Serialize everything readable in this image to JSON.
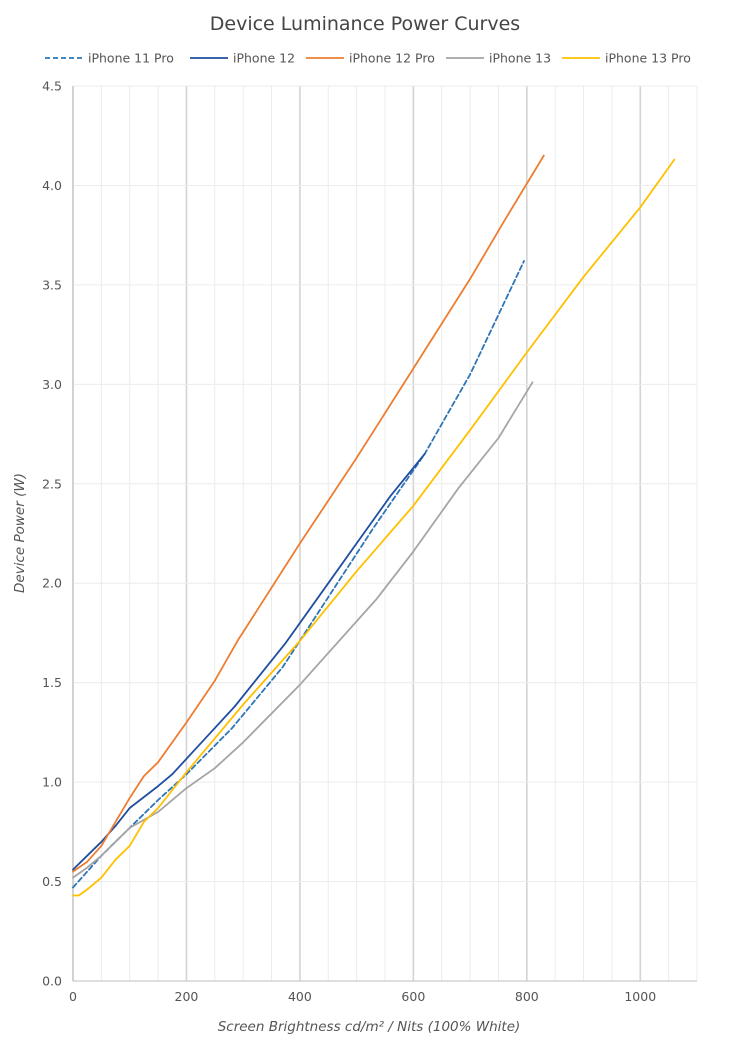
{
  "chart_data": {
    "type": "line",
    "title": "Device Luminance Power Curves",
    "xlabel": "Screen Brightness cd/m² / Nits (100% White)",
    "ylabel": "Device Power (W)",
    "xlim": [
      0,
      1100
    ],
    "ylim": [
      0,
      4.5
    ],
    "x_ticks": [
      0,
      200,
      400,
      600,
      800,
      1000
    ],
    "y_ticks": [
      0.0,
      0.5,
      1.0,
      1.5,
      2.0,
      2.5,
      3.0,
      3.5,
      4.0,
      4.5
    ],
    "x_tick_labels": [
      "0",
      "200",
      "400",
      "600",
      "800",
      "1000"
    ],
    "y_tick_labels": [
      "0.0",
      "0.5",
      "1.0",
      "1.5",
      "2.0",
      "2.5",
      "3.0",
      "3.5",
      "4.0",
      "4.5"
    ],
    "grid": true,
    "legend_position": "top",
    "series": [
      {
        "name": "iPhone 11 Pro",
        "color": "#2e75b6",
        "dash": true,
        "points": [
          [
            0,
            0.47
          ],
          [
            25,
            0.55
          ],
          [
            50,
            0.63
          ],
          [
            75,
            0.7
          ],
          [
            100,
            0.77
          ],
          [
            150,
            0.91
          ],
          [
            200,
            1.04
          ],
          [
            280,
            1.27
          ],
          [
            370,
            1.58
          ],
          [
            450,
            1.93
          ],
          [
            530,
            2.28
          ],
          [
            620,
            2.65
          ],
          [
            700,
            3.05
          ],
          [
            795,
            3.62
          ]
        ]
      },
      {
        "name": "iPhone 12",
        "color": "#1f4ea1",
        "dash": false,
        "points": [
          [
            0,
            0.56
          ],
          [
            25,
            0.63
          ],
          [
            50,
            0.7
          ],
          [
            75,
            0.78
          ],
          [
            100,
            0.87
          ],
          [
            150,
            0.98
          ],
          [
            175,
            1.04
          ],
          [
            230,
            1.21
          ],
          [
            285,
            1.38
          ],
          [
            375,
            1.7
          ],
          [
            450,
            2.0
          ],
          [
            500,
            2.2
          ],
          [
            560,
            2.44
          ],
          [
            620,
            2.65
          ]
        ]
      },
      {
        "name": "iPhone 12 Pro",
        "color": "#ed7d31",
        "dash": false,
        "points": [
          [
            0,
            0.55
          ],
          [
            25,
            0.6
          ],
          [
            50,
            0.68
          ],
          [
            75,
            0.8
          ],
          [
            100,
            0.92
          ],
          [
            125,
            1.03
          ],
          [
            150,
            1.1
          ],
          [
            200,
            1.3
          ],
          [
            250,
            1.51
          ],
          [
            290,
            1.71
          ],
          [
            400,
            2.2
          ],
          [
            500,
            2.63
          ],
          [
            600,
            3.08
          ],
          [
            700,
            3.53
          ],
          [
            760,
            3.82
          ],
          [
            830,
            4.15
          ]
        ]
      },
      {
        "name": "iPhone 13",
        "color": "#a5a5a5",
        "dash": false,
        "points": [
          [
            0,
            0.52
          ],
          [
            25,
            0.57
          ],
          [
            50,
            0.63
          ],
          [
            75,
            0.7
          ],
          [
            100,
            0.77
          ],
          [
            125,
            0.81
          ],
          [
            150,
            0.85
          ],
          [
            200,
            0.97
          ],
          [
            250,
            1.07
          ],
          [
            300,
            1.2
          ],
          [
            400,
            1.49
          ],
          [
            535,
            1.92
          ],
          [
            600,
            2.16
          ],
          [
            680,
            2.48
          ],
          [
            750,
            2.73
          ],
          [
            810,
            3.01
          ]
        ]
      },
      {
        "name": "iPhone 13 Pro",
        "color": "#ffc000",
        "dash": false,
        "points": [
          [
            0,
            0.43
          ],
          [
            10,
            0.43
          ],
          [
            25,
            0.46
          ],
          [
            50,
            0.52
          ],
          [
            75,
            0.61
          ],
          [
            100,
            0.68
          ],
          [
            125,
            0.8
          ],
          [
            150,
            0.87
          ],
          [
            200,
            1.05
          ],
          [
            250,
            1.22
          ],
          [
            300,
            1.39
          ],
          [
            400,
            1.71
          ],
          [
            500,
            2.06
          ],
          [
            600,
            2.39
          ],
          [
            700,
            2.77
          ],
          [
            800,
            3.16
          ],
          [
            900,
            3.54
          ],
          [
            1000,
            3.89
          ],
          [
            1060,
            4.13
          ]
        ]
      }
    ]
  }
}
